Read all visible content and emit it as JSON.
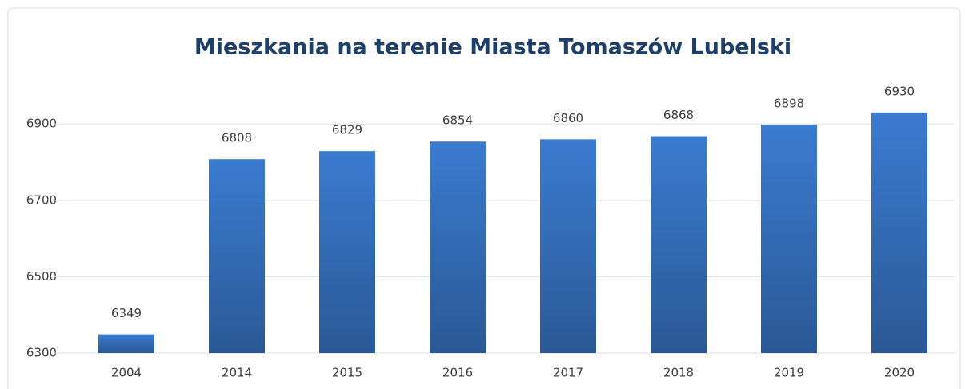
{
  "chart_data": {
    "type": "bar",
    "title": "Mieszkania na terenie Miasta Tomaszów Lubelski",
    "categories": [
      "2004",
      "2014",
      "2015",
      "2016",
      "2017",
      "2018",
      "2019",
      "2020"
    ],
    "values": [
      6349,
      6808,
      6829,
      6854,
      6860,
      6868,
      6898,
      6930
    ],
    "color": "#3b7bd0",
    "ylim": [
      6300,
      6980
    ],
    "yticks": [
      6300,
      6500,
      6700,
      6900
    ],
    "grid": true
  }
}
